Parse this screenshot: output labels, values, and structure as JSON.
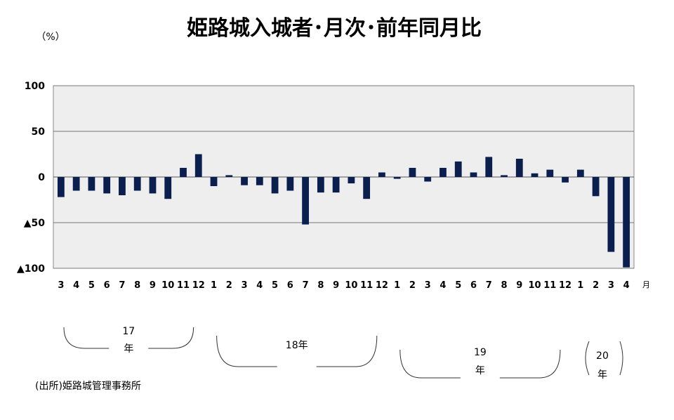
{
  "chart_data": {
    "type": "bar",
    "title": "姫路城入城者･月次･前年同月比",
    "unit_label": "（%）",
    "ylim": [
      -100,
      100
    ],
    "y_ticks": [
      {
        "value": 100,
        "label": "100"
      },
      {
        "value": 50,
        "label": "50"
      },
      {
        "value": 0,
        "label": "0"
      },
      {
        "value": -50,
        "label": "▲50"
      },
      {
        "value": -100,
        "label": "▲100"
      }
    ],
    "grid": true,
    "categories": [
      "3",
      "4",
      "5",
      "6",
      "7",
      "8",
      "9",
      "10",
      "11",
      "12",
      "1",
      "2",
      "3",
      "4",
      "5",
      "6",
      "7",
      "8",
      "9",
      "10",
      "11",
      "12",
      "1",
      "2",
      "3",
      "4",
      "5",
      "6",
      "7",
      "8",
      "9",
      "10",
      "11",
      "12",
      "1",
      "2",
      "3",
      "4"
    ],
    "values": [
      -22,
      -15,
      -15,
      -18,
      -20,
      -15,
      -18,
      -24,
      10,
      25,
      -10,
      2,
      -9,
      -9,
      -18,
      -15,
      -52,
      -17,
      -17,
      -7,
      -24,
      5,
      -2,
      10,
      -5,
      10,
      17,
      5,
      22,
      2,
      20,
      4,
      8,
      -6,
      8,
      -21,
      -82,
      -99
    ],
    "x_unit": "月",
    "bar_color": "#0b1f4f",
    "plot_bg": "#eeeeee",
    "year_groups": [
      {
        "number": "17",
        "suffix": "年",
        "start": 0,
        "end": 9
      },
      {
        "number": "18",
        "suffix": "年",
        "start": 10,
        "end": 21
      },
      {
        "number": "19",
        "suffix": "年",
        "start": 22,
        "end": 33
      },
      {
        "number": "20",
        "suffix": "年",
        "start": 34,
        "end": 37
      }
    ]
  },
  "source": "(出所)姫路城管理事務所"
}
